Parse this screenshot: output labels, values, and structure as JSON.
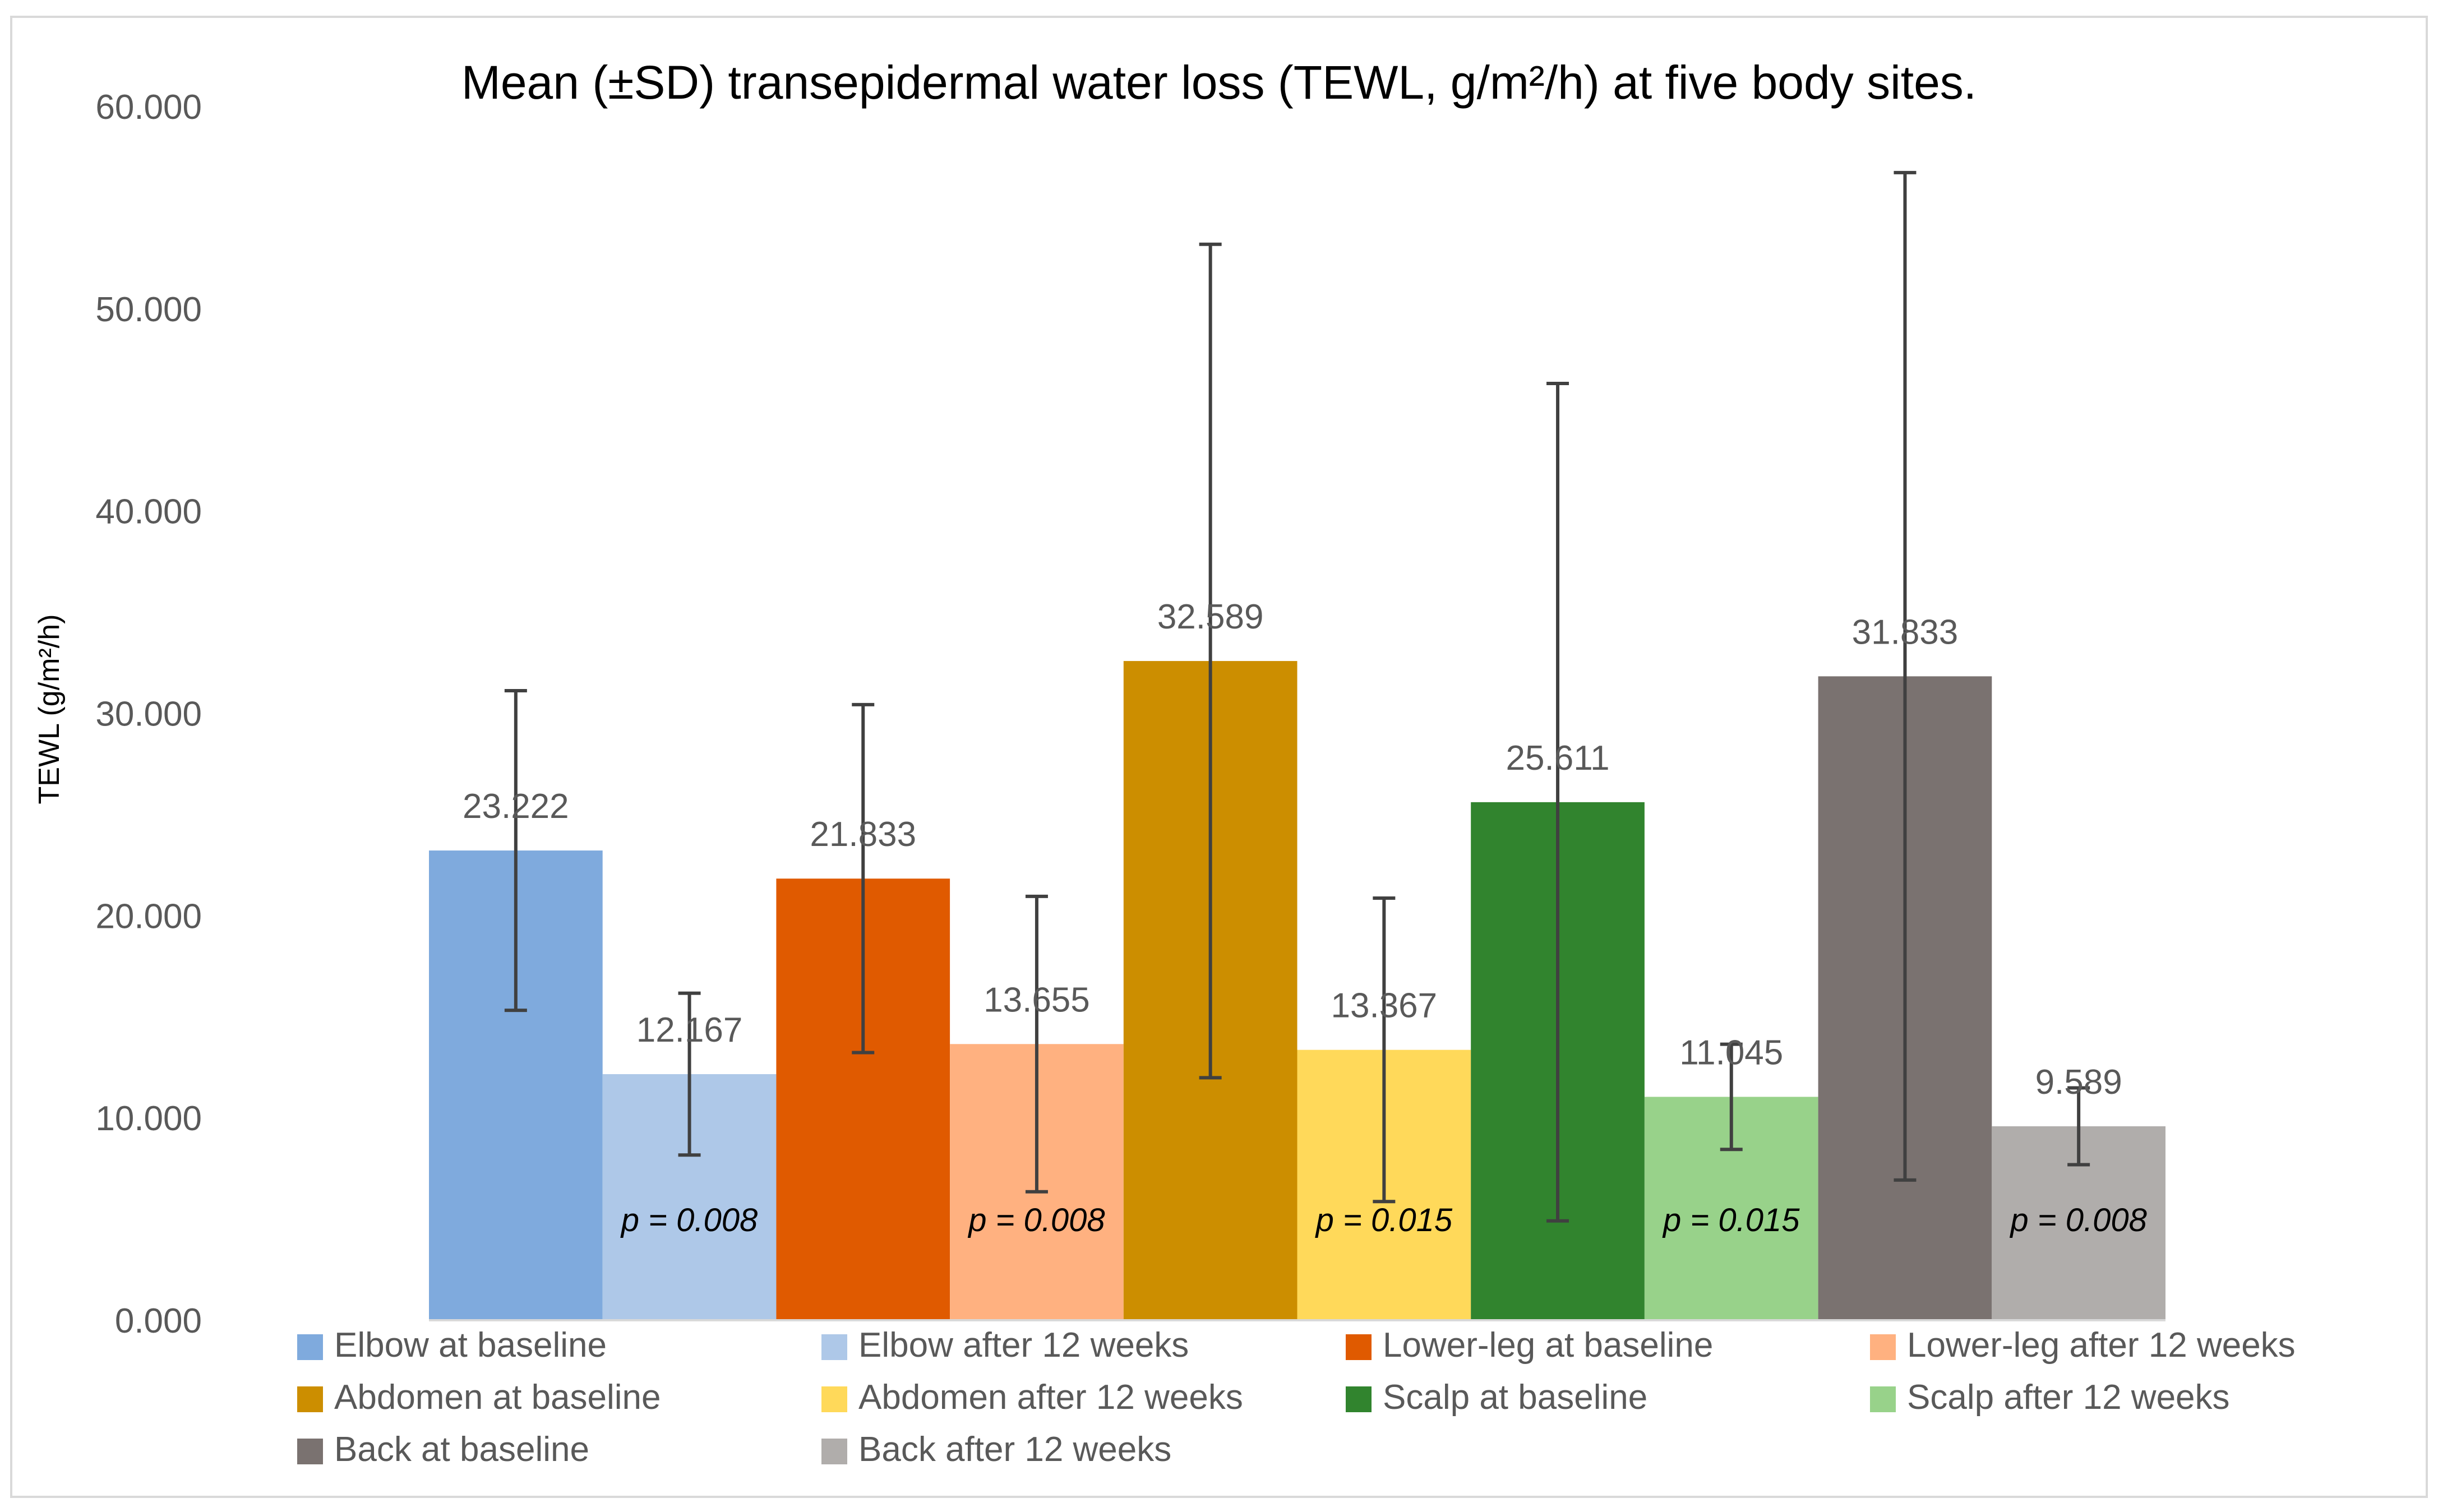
{
  "chart_data": {
    "type": "bar",
    "title": "Mean (±SD) transepidermal water loss (TEWL, g/m²/h) at five body sites.",
    "xlabel": "",
    "ylabel": "TEWL (g/m²/h)",
    "ylim": [
      0,
      60
    ],
    "yticks": [
      "0.000",
      "10.000",
      "20.000",
      "30.000",
      "40.000",
      "50.000",
      "60.000"
    ],
    "grid": false,
    "legend_position": "bottom",
    "categories": [
      ""
    ],
    "series": [
      {
        "name": "Elbow at baseline",
        "values": [
          23.222
        ],
        "label": "23.222",
        "sd": 7.9,
        "color": "#7FAADD"
      },
      {
        "name": "Elbow after 12 weeks",
        "values": [
          12.167
        ],
        "label": "12.167",
        "sd": 4.0,
        "color": "#AEC8E8",
        "p": "p = 0.008"
      },
      {
        "name": "Lower-leg at baseline",
        "values": [
          21.833
        ],
        "label": "21.833",
        "sd": 8.6,
        "color": "#E05A00"
      },
      {
        "name": "Lower-leg after 12 weeks",
        "values": [
          13.655
        ],
        "label": "13.655",
        "sd": 7.3,
        "color": "#FFB180",
        "p": "p = 0.008"
      },
      {
        "name": "Abdomen at baseline",
        "values": [
          32.589
        ],
        "label": "32.589",
        "sd": 20.6,
        "color": "#CC8E00"
      },
      {
        "name": "Abdomen after 12 weeks",
        "values": [
          13.367
        ],
        "label": "13.367",
        "sd": 7.5,
        "color": "#FFD95A",
        "p": "p = 0.015"
      },
      {
        "name": "Scalp at baseline",
        "values": [
          25.611
        ],
        "label": "25.611",
        "sd": 20.7,
        "color": "#31842E"
      },
      {
        "name": "Scalp after 12 weeks",
        "values": [
          11.045
        ],
        "label": "11.045",
        "sd": 2.6,
        "color": "#98D28A",
        "p": "p = 0.015"
      },
      {
        "name": "Back at baseline",
        "values": [
          31.833
        ],
        "label": "31.833",
        "sd": 24.9,
        "color": "#7A7270"
      },
      {
        "name": "Back after 12 weeks",
        "values": [
          9.589
        ],
        "label": "9.589",
        "sd": 1.9,
        "color": "#B0ADAB",
        "p": "p = 0.008"
      }
    ]
  }
}
